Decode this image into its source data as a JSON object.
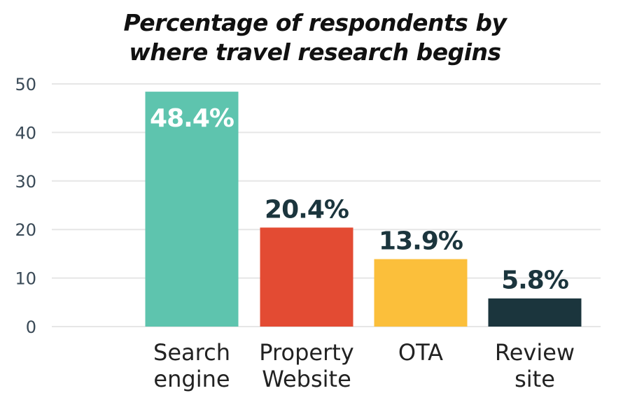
{
  "chart_data": {
    "type": "bar",
    "title_lines": [
      "Percentage of respondents by",
      "where travel research begins"
    ],
    "categories": [
      [
        "Search",
        "engine"
      ],
      [
        "Property",
        "Website"
      ],
      [
        "OTA"
      ],
      [
        "Review",
        "site"
      ]
    ],
    "values": [
      48.4,
      20.4,
      13.9,
      5.8
    ],
    "data_labels": [
      "48.4%",
      "20.4%",
      "13.9%",
      "5.8%"
    ],
    "bar_colors": [
      "#5ec4ae",
      "#e34b33",
      "#fbbf3b",
      "#1b353d"
    ],
    "data_label_colors": [
      "#ffffff",
      "#1b353d",
      "#1b353d",
      "#1b353d"
    ],
    "data_label_inside": [
      true,
      false,
      false,
      false
    ],
    "yticks": [
      "0",
      "10",
      "20",
      "30",
      "40",
      "50"
    ],
    "ylim": [
      0,
      50
    ],
    "grid": true
  }
}
